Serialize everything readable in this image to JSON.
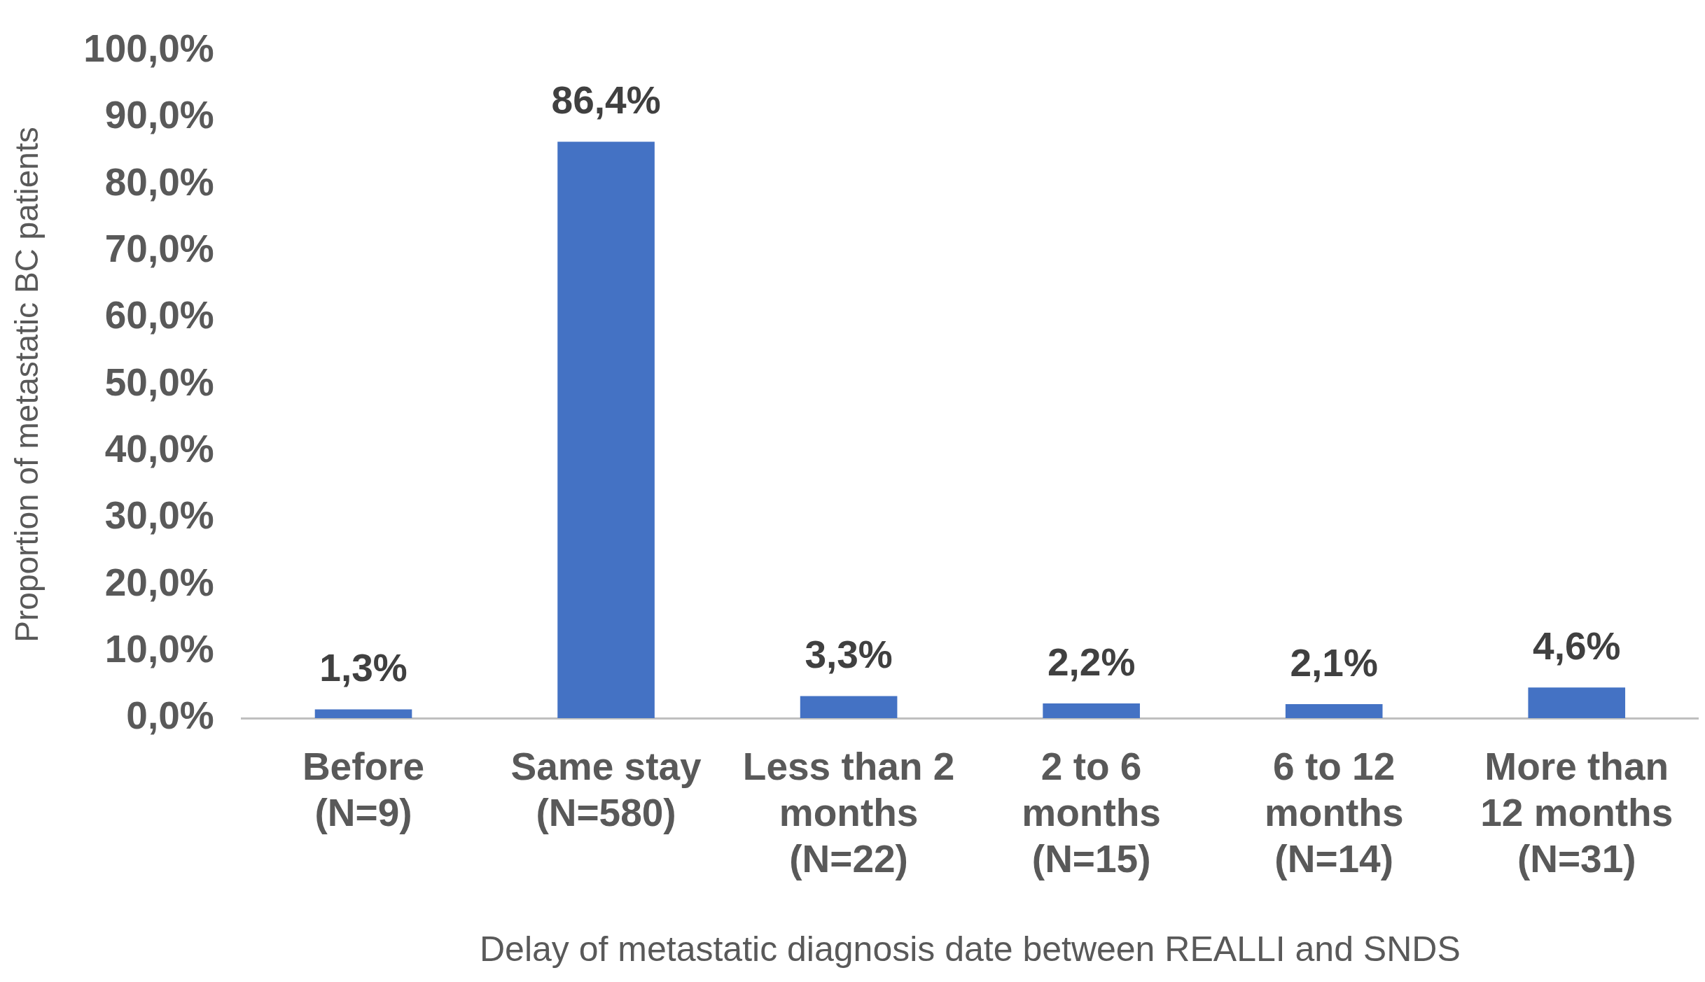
{
  "chart_data": {
    "type": "bar",
    "xlabel": "Delay of metastatic diagnosis date between REALLI and SNDS",
    "ylabel": "Proportion of metastatic BC patients",
    "categories": [
      "Before (N=9)",
      "Same stay (N=580)",
      "Less than 2 months (N=22)",
      "2 to 6 months (N=15)",
      "6 to 12 months (N=14)",
      "More than 12 months (N=31)"
    ],
    "values": [
      1.3,
      86.4,
      3.3,
      2.2,
      2.1,
      4.6
    ],
    "value_labels": [
      "1,3%",
      "86,4%",
      "3,3%",
      "2,2%",
      "2,1%",
      "4,6%"
    ],
    "color": "#4472c4",
    "ylim": [
      0,
      100
    ],
    "yticks": [
      {
        "value": 0,
        "label": "0,0%"
      },
      {
        "value": 10,
        "label": "10,0%"
      },
      {
        "value": 20,
        "label": "20,0%"
      },
      {
        "value": 30,
        "label": "30,0%"
      },
      {
        "value": 40,
        "label": "40,0%"
      },
      {
        "value": 50,
        "label": "50,0%"
      },
      {
        "value": 60,
        "label": "60,0%"
      },
      {
        "value": 70,
        "label": "70,0%"
      },
      {
        "value": 80,
        "label": "80,0%"
      },
      {
        "value": 90,
        "label": "90,0%"
      },
      {
        "value": 100,
        "label": "100,0%"
      }
    ],
    "grid": false,
    "legend": false
  }
}
